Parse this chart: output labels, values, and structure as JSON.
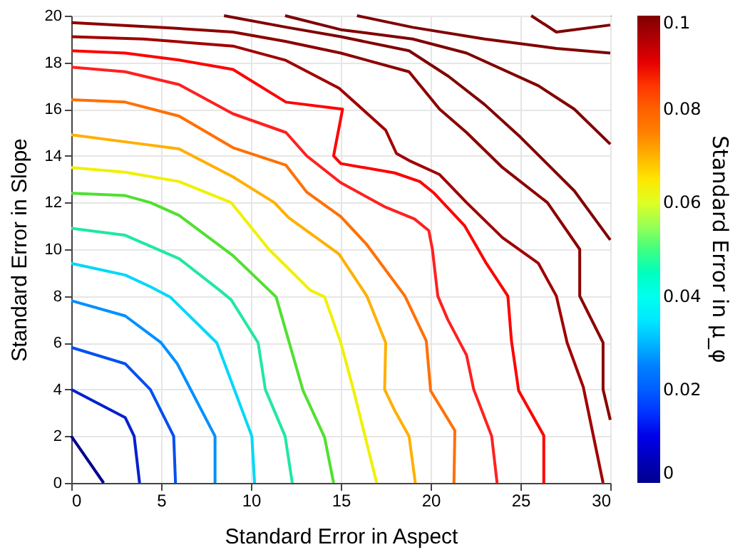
{
  "chart_data": {
    "type": "line",
    "xlabel": "Standard Error in Aspect",
    "ylabel": "Standard Error in Slope",
    "clabel": "Standard Error in μ_φ",
    "clim": [
      0,
      0.1
    ],
    "cticks": [
      0,
      0.02,
      0.04,
      0.06,
      0.08,
      0.1
    ],
    "xlim": [
      0,
      30
    ],
    "ylim": [
      0,
      20
    ],
    "xticks": [
      0,
      5,
      10,
      15,
      20,
      25,
      30
    ],
    "yticks": [
      0,
      2,
      4,
      6,
      8,
      10,
      12,
      14,
      16,
      18,
      20
    ],
    "grid": true,
    "legend": false,
    "marker": "none",
    "line_style": "solid",
    "series": [
      {
        "color": "#00008f",
        "x": [
          0,
          1.8
        ],
        "values": [
          2.0,
          0
        ]
      },
      {
        "color": "#0020d0",
        "x": [
          0,
          3,
          3.5,
          3.8
        ],
        "values": [
          4.0,
          2.8,
          2.0,
          0
        ]
      },
      {
        "color": "#0050f0",
        "x": [
          0,
          3,
          4.4,
          5.7,
          5.8
        ],
        "values": [
          5.8,
          5.1,
          4.0,
          2.0,
          0
        ]
      },
      {
        "color": "#0090ff",
        "x": [
          0,
          3,
          5,
          5.9,
          8,
          8
        ],
        "values": [
          7.8,
          7.15,
          6.0,
          5.1,
          2.0,
          0
        ]
      },
      {
        "color": "#00d8f8",
        "x": [
          0,
          3,
          4.4,
          5.5,
          8.1,
          10.05,
          10.2
        ],
        "values": [
          9.4,
          8.9,
          8.4,
          7.96,
          6.0,
          2.0,
          0
        ]
      },
      {
        "color": "#20e8a0",
        "x": [
          0,
          3,
          6,
          8.25,
          8.9,
          10.4,
          10.8,
          11.9,
          12.3
        ],
        "values": [
          10.9,
          10.6,
          9.6,
          8.25,
          7.84,
          6.0,
          4.0,
          2.0,
          0
        ]
      },
      {
        "color": "#50e030",
        "x": [
          0,
          3,
          4.4,
          6,
          9,
          11.4,
          12.9,
          14.1,
          14.6
        ],
        "values": [
          12.4,
          12.3,
          12.0,
          11.45,
          9.73,
          7.96,
          3.95,
          1.95,
          0
        ]
      },
      {
        "color": "#f0f000",
        "x": [
          0,
          3,
          6,
          8.9,
          11,
          13.3,
          14.1,
          15,
          15.7,
          17
        ],
        "values": [
          13.5,
          13.3,
          12.9,
          12.0,
          10.0,
          8.25,
          7.96,
          6.0,
          4.0,
          0
        ]
      },
      {
        "color": "#ffb000",
        "x": [
          0,
          3,
          6,
          9,
          11.3,
          12.1,
          14.9,
          16.45,
          17.5,
          17.44,
          18.0,
          18.8,
          19.15
        ],
        "values": [
          14.9,
          14.6,
          14.3,
          13.1,
          12.0,
          11.35,
          9.8,
          8.0,
          6.0,
          4.0,
          3.1,
          2.0,
          0
        ]
      },
      {
        "color": "#ff7000",
        "x": [
          0,
          3,
          6,
          9,
          11.95,
          13.1,
          15,
          16.45,
          18.57,
          19.76,
          20.0,
          21.35,
          21.3
        ],
        "values": [
          16.4,
          16.3,
          15.7,
          14.35,
          13.6,
          12.45,
          11.4,
          10.2,
          8.0,
          6.08,
          3.95,
          2.24,
          0
        ]
      },
      {
        "color": "#ff2020",
        "x": [
          0,
          3,
          6,
          9,
          11.95,
          13.1,
          15,
          17.5,
          19.1,
          19.9,
          20.1,
          20.4,
          20.95,
          22.0,
          22.4,
          23.4,
          23.7
        ],
        "values": [
          17.8,
          17.6,
          17.05,
          15.8,
          15.0,
          14.0,
          12.85,
          11.8,
          11.3,
          10.8,
          10.0,
          8.0,
          7.0,
          5.47,
          4.0,
          2.0,
          0
        ]
      },
      {
        "color": "#ff0000",
        "x": [
          0,
          3,
          6,
          9,
          11.95,
          15.1,
          14.6,
          15,
          18,
          19.4,
          20.2,
          21.9,
          23.1,
          24.3,
          24.5,
          24.9,
          26.3,
          26.3
        ],
        "values": [
          18.5,
          18.4,
          18.1,
          17.7,
          16.3,
          16.0,
          14.0,
          13.67,
          13.27,
          12.9,
          12.4,
          11.0,
          9.4,
          8.0,
          6.08,
          3.95,
          2.03,
          0
        ]
      },
      {
        "color": "#a00000",
        "x": [
          0,
          4,
          9,
          11.9,
          14.9,
          17.5,
          18.1,
          18.8,
          20.5,
          22,
          24,
          26,
          27,
          27.6,
          28.5,
          29.6
        ],
        "values": [
          19.1,
          19.0,
          18.7,
          18.1,
          16.9,
          15.1,
          14.1,
          13.8,
          13.2,
          12.0,
          10.5,
          9.4,
          8.0,
          6.0,
          4.1,
          0
        ]
      },
      {
        "color": "#8b0000",
        "x": [
          0,
          5,
          9,
          11.9,
          15,
          18.8,
          20.5,
          22,
          24,
          26.5,
          28.3,
          28.3,
          29.6,
          29.6,
          30
        ],
        "values": [
          19.7,
          19.5,
          19.3,
          18.9,
          18.4,
          17.6,
          16.0,
          15.0,
          13.5,
          12.0,
          10.0,
          8.0,
          6.0,
          4.0,
          2.7
        ]
      },
      {
        "color": "#800000",
        "x": [
          8.5,
          12,
          15,
          18.8,
          21,
          23,
          25,
          28,
          30
        ],
        "values": [
          20,
          19.5,
          19.1,
          18.5,
          17.4,
          16.2,
          14.8,
          12.5,
          10.4
        ]
      },
      {
        "color": "#800000",
        "x": [
          11.9,
          15,
          19,
          22,
          26,
          28,
          30
        ],
        "values": [
          20,
          19.4,
          19.0,
          18.4,
          17.0,
          16.0,
          14.5
        ]
      },
      {
        "color": "#800000",
        "x": [
          15.9,
          19,
          23,
          27,
          30
        ],
        "values": [
          20,
          19.5,
          19.0,
          18.6,
          18.4
        ]
      },
      {
        "color": "#800000",
        "x": [
          25.6,
          27,
          30
        ],
        "values": [
          20,
          19.3,
          19.6
        ]
      }
    ]
  }
}
